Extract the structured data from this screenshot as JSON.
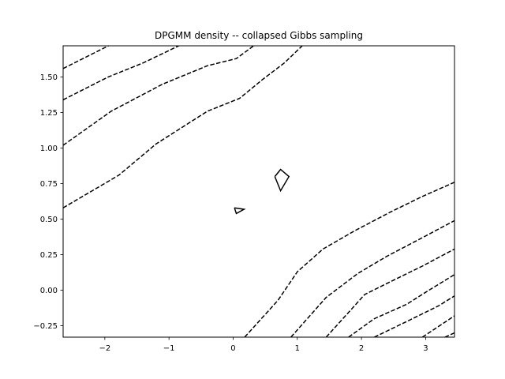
{
  "chart_data": {
    "type": "contour",
    "title": "DPGMM density -- collapsed Gibbs sampling",
    "xlabel": "",
    "ylabel": "",
    "xlim": [
      -2.65,
      3.45
    ],
    "ylim": [
      -0.33,
      1.72
    ],
    "xticks": [
      -2,
      -1,
      0,
      1,
      2,
      3
    ],
    "yticks": [
      -0.25,
      0.0,
      0.25,
      0.5,
      0.75,
      1.0,
      1.25,
      1.5
    ],
    "xtick_labels": [
      "−2",
      "−1",
      "0",
      "1",
      "2",
      "3"
    ],
    "ytick_labels": [
      "−0.25",
      "0.00",
      "0.25",
      "0.50",
      "0.75",
      "1.00",
      "1.25",
      "1.50"
    ],
    "grid": false,
    "line_color": "#000000",
    "series": [
      {
        "style": "dashed",
        "points": [
          [
            -2.65,
            1.56
          ],
          [
            -1.9,
            1.73
          ]
        ]
      },
      {
        "style": "dashed",
        "points": [
          [
            -2.65,
            1.34
          ],
          [
            -1.95,
            1.5
          ],
          [
            -1.4,
            1.6
          ],
          [
            -0.8,
            1.73
          ]
        ]
      },
      {
        "style": "dashed",
        "points": [
          [
            -2.65,
            1.02
          ],
          [
            -1.9,
            1.26
          ],
          [
            -1.1,
            1.45
          ],
          [
            -0.4,
            1.58
          ],
          [
            0.05,
            1.63
          ],
          [
            0.35,
            1.73
          ]
        ]
      },
      {
        "style": "dashed",
        "points": [
          [
            -2.65,
            0.58
          ],
          [
            -1.78,
            0.81
          ],
          [
            -1.2,
            1.03
          ],
          [
            -0.4,
            1.26
          ],
          [
            0.1,
            1.35
          ],
          [
            0.45,
            1.48
          ],
          [
            0.8,
            1.6
          ],
          [
            1.1,
            1.73
          ]
        ]
      },
      {
        "style": "dashed",
        "points": [
          [
            0.18,
            -0.33
          ],
          [
            0.7,
            -0.07
          ],
          [
            1.0,
            0.13
          ],
          [
            1.4,
            0.29
          ],
          [
            1.9,
            0.42
          ],
          [
            2.45,
            0.55
          ],
          [
            2.95,
            0.66
          ],
          [
            3.45,
            0.76
          ]
        ]
      },
      {
        "style": "dashed",
        "points": [
          [
            0.9,
            -0.33
          ],
          [
            1.45,
            -0.05
          ],
          [
            1.95,
            0.12
          ],
          [
            2.4,
            0.24
          ],
          [
            2.95,
            0.37
          ],
          [
            3.45,
            0.49
          ]
        ]
      },
      {
        "style": "dashed",
        "points": [
          [
            1.45,
            -0.33
          ],
          [
            2.05,
            -0.03
          ],
          [
            2.45,
            0.06
          ],
          [
            2.95,
            0.17
          ],
          [
            3.45,
            0.29
          ]
        ]
      },
      {
        "style": "dashed",
        "points": [
          [
            1.8,
            -0.33
          ],
          [
            2.2,
            -0.2
          ],
          [
            2.7,
            -0.1
          ],
          [
            3.05,
            0.0
          ],
          [
            3.45,
            0.11
          ]
        ]
      },
      {
        "style": "dashed",
        "points": [
          [
            2.2,
            -0.33
          ],
          [
            2.75,
            -0.21
          ],
          [
            3.2,
            -0.11
          ],
          [
            3.45,
            -0.04
          ]
        ]
      },
      {
        "style": "dashed",
        "points": [
          [
            2.95,
            -0.33
          ],
          [
            3.45,
            -0.18
          ]
        ]
      },
      {
        "style": "dashed",
        "points": [
          [
            3.3,
            -0.33
          ],
          [
            3.45,
            -0.3
          ]
        ]
      },
      {
        "style": "solid",
        "closed": true,
        "points": [
          [
            0.65,
            0.8
          ],
          [
            0.74,
            0.85
          ],
          [
            0.87,
            0.8
          ],
          [
            0.74,
            0.7
          ],
          [
            0.65,
            0.8
          ]
        ]
      },
      {
        "style": "solid",
        "closed": true,
        "points": [
          [
            0.02,
            0.58
          ],
          [
            0.17,
            0.57
          ],
          [
            0.05,
            0.54
          ],
          [
            0.02,
            0.58
          ]
        ]
      }
    ]
  }
}
